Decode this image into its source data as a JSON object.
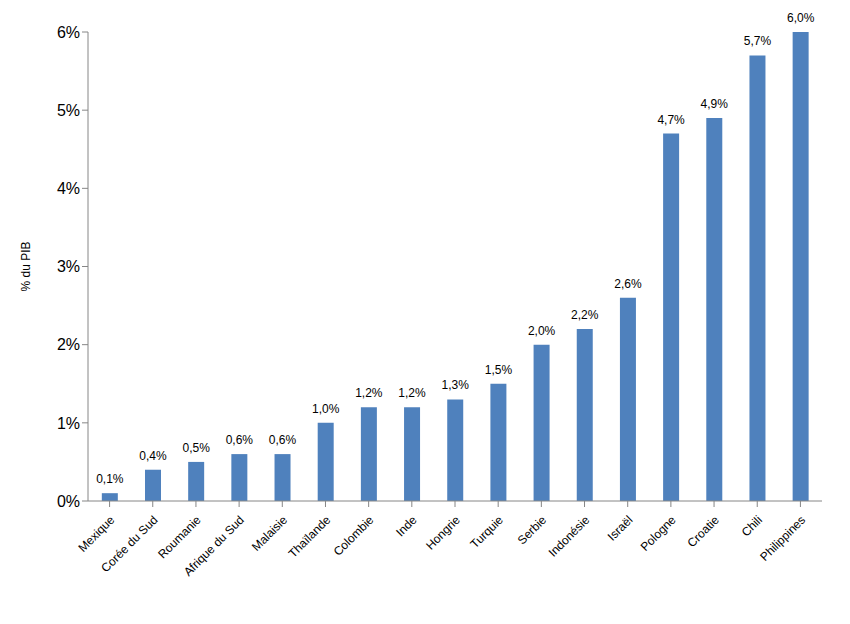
{
  "chart_data": {
    "type": "bar",
    "y_label": "% du PIB",
    "categories": [
      "Mexique",
      "Corée du Sud",
      "Roumanie",
      "Afrique du Sud",
      "Malaisie",
      "Thaïlande",
      "Colombie",
      "Inde",
      "Hongrie",
      "Turquie",
      "Serbie",
      "Indonésie",
      "Israël",
      "Pologne",
      "Croatie",
      "Chili",
      "Philippines"
    ],
    "values": [
      0.1,
      0.4,
      0.5,
      0.6,
      0.6,
      1.0,
      1.2,
      1.2,
      1.3,
      1.5,
      2.0,
      2.2,
      2.6,
      4.7,
      4.9,
      5.7,
      6.0
    ],
    "value_labels": [
      "0,1%",
      "0,4%",
      "0,5%",
      "0,6%",
      "0,6%",
      "1,0%",
      "1,2%",
      "1,2%",
      "1,3%",
      "1,5%",
      "2,0%",
      "2,2%",
      "2,6%",
      "4,7%",
      "4,9%",
      "5,7%",
      "6,0%"
    ],
    "color": "#4f81bd",
    "ylim": [
      0,
      6
    ],
    "yticks": [
      {
        "value": 0,
        "label": "0%"
      },
      {
        "value": 1,
        "label": "1%"
      },
      {
        "value": 2,
        "label": "2%"
      },
      {
        "value": 3,
        "label": "3%"
      },
      {
        "value": 4,
        "label": "4%"
      },
      {
        "value": 5,
        "label": "5%"
      },
      {
        "value": 6,
        "label": "6%"
      }
    ],
    "grid": false,
    "data_labels": true
  }
}
